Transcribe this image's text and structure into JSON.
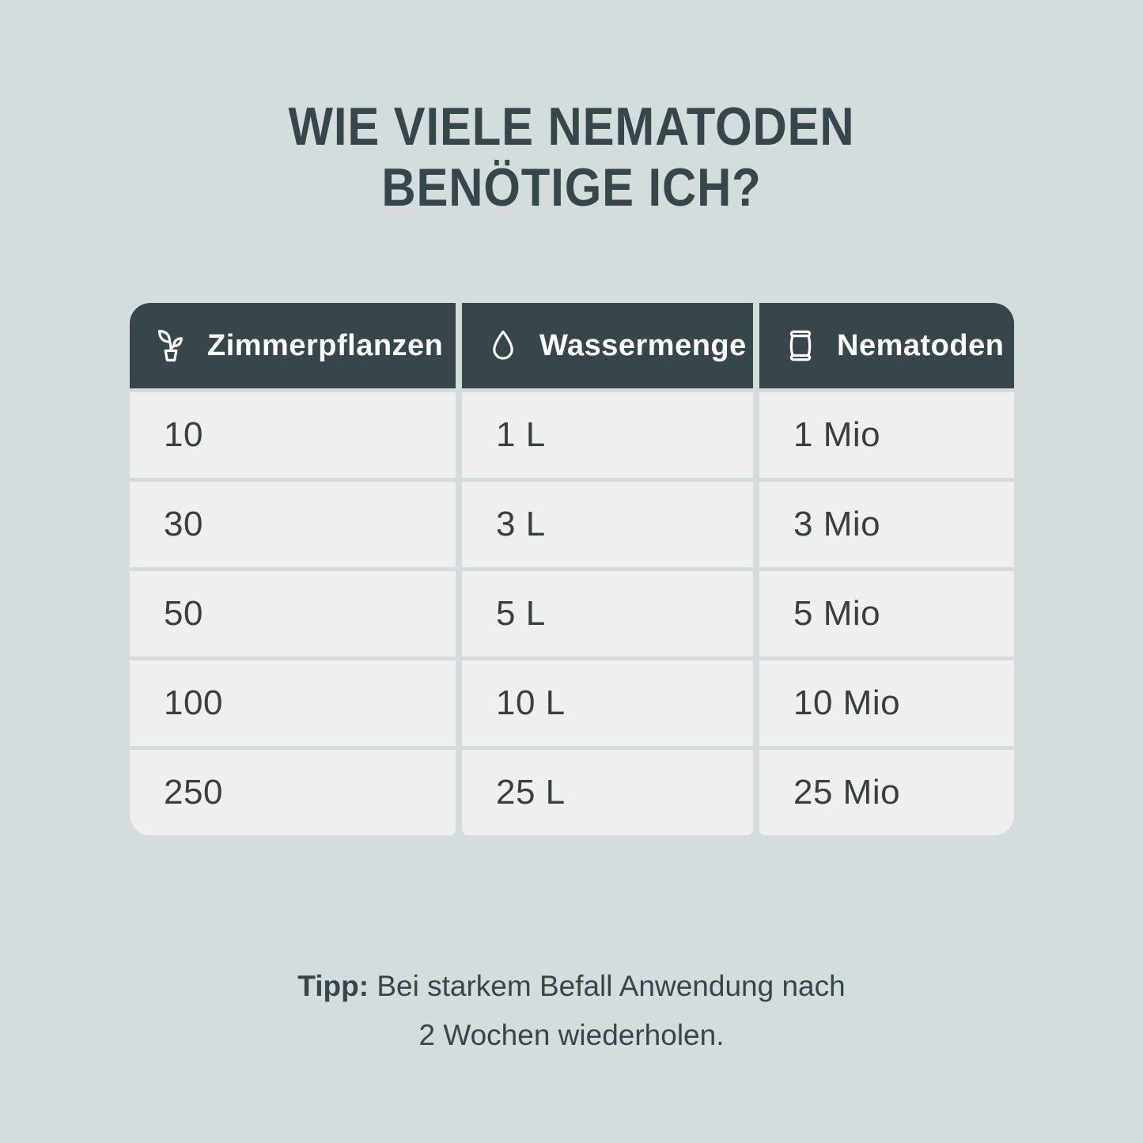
{
  "title": {
    "line1": "WIE VIELE NEMATODEN",
    "line2": "BENÖTIGE ICH?"
  },
  "chart_data": {
    "type": "table",
    "title": "WIE VIELE NEMATODEN BENÖTIGE ICH?",
    "columns": [
      "Zimmerpflanzen",
      "Wassermenge",
      "Nematoden"
    ],
    "column_icons": [
      "potted-plant-icon",
      "water-drop-icon",
      "sachet-icon"
    ],
    "rows": [
      [
        "10",
        "1 L",
        "1 Mio"
      ],
      [
        "30",
        "3 L",
        "3 Mio"
      ],
      [
        "50",
        "5 L",
        "5 Mio"
      ],
      [
        "100",
        "10 L",
        "10 Mio"
      ],
      [
        "250",
        "25 L",
        "25 Mio"
      ]
    ]
  },
  "tip": {
    "prefix": "Tipp:",
    "line1_rest": " Bei starkem Befall Anwendung nach",
    "line2": "2 Wochen wiederholen."
  },
  "colors": {
    "background": "#d4dcde",
    "header_dark": "#36464a",
    "cell_light": "#eef0f0",
    "title_text": "#36464a",
    "body_text": "#3a3e3f",
    "header_text": "#ffffff"
  }
}
